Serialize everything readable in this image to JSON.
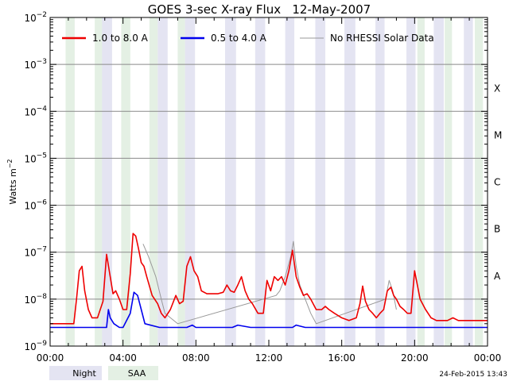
{
  "chart_data": {
    "type": "line",
    "title": "GOES 3-sec X-ray Flux   12-May-2007",
    "ylabel": "Watts m",
    "ylabel_sup": "−2",
    "yscale": "log",
    "ylim": [
      1e-09,
      0.01
    ],
    "xlim": [
      0,
      24
    ],
    "xunit": "hours",
    "y_ticks": [
      {
        "value": 1e-09,
        "label": "10",
        "exp": "−9"
      },
      {
        "value": 1e-08,
        "label": "10",
        "exp": "−8"
      },
      {
        "value": 1e-07,
        "label": "10",
        "exp": "−7"
      },
      {
        "value": 1e-06,
        "label": "10",
        "exp": "−6"
      },
      {
        "value": 1e-05,
        "label": "10",
        "exp": "−5"
      },
      {
        "value": 0.0001,
        "label": "10",
        "exp": "−4"
      },
      {
        "value": 0.001,
        "label": "10",
        "exp": "−3"
      },
      {
        "value": 0.01,
        "label": "10",
        "exp": "−2"
      }
    ],
    "x_ticks": [
      {
        "value": 0,
        "label": "00:00"
      },
      {
        "value": 4,
        "label": "04:00"
      },
      {
        "value": 8,
        "label": "08:00"
      },
      {
        "value": 12,
        "label": "12:00"
      },
      {
        "value": 16,
        "label": "16:00"
      },
      {
        "value": 20,
        "label": "20:00"
      },
      {
        "value": 24,
        "label": "00:00"
      }
    ],
    "grid": true,
    "class_labels": [
      {
        "label": "A",
        "value": 1e-08
      },
      {
        "label": "B",
        "value": 1e-07
      },
      {
        "label": "C",
        "value": 1e-06
      },
      {
        "label": "M",
        "value": 1e-05
      },
      {
        "label": "X",
        "value": 0.0001
      }
    ],
    "legend_position": "top",
    "series": [
      {
        "name": "1.0 to 8.0 A",
        "color": "#ee0000",
        "x": [
          0,
          1.3,
          1.45,
          1.6,
          1.75,
          1.9,
          2.1,
          2.3,
          2.6,
          2.9,
          3.1,
          3.3,
          3.45,
          3.6,
          3.8,
          4.0,
          4.2,
          4.4,
          4.55,
          4.7,
          4.85,
          5.0,
          5.15,
          5.3,
          5.6,
          5.9,
          6.1,
          6.3,
          6.6,
          6.9,
          7.1,
          7.3,
          7.5,
          7.7,
          7.9,
          8.1,
          8.3,
          8.6,
          8.9,
          9.2,
          9.5,
          9.7,
          9.9,
          10.1,
          10.3,
          10.5,
          10.7,
          10.9,
          11.1,
          11.4,
          11.7,
          11.9,
          12.1,
          12.3,
          12.5,
          12.7,
          12.9,
          13.1,
          13.3,
          13.5,
          13.7,
          13.9,
          14.1,
          14.3,
          14.6,
          14.9,
          15.1,
          15.3,
          15.6,
          16.0,
          16.4,
          16.8,
          17.0,
          17.15,
          17.3,
          17.5,
          17.7,
          17.9,
          18.1,
          18.3,
          18.5,
          18.7,
          18.85,
          19.0,
          19.2,
          19.4,
          19.6,
          19.8,
          20.0,
          20.3,
          20.6,
          20.9,
          21.2,
          21.5,
          21.8,
          22.1,
          22.4,
          22.7,
          23.0,
          23.5,
          24.0
        ],
        "y": [
          3e-09,
          3e-09,
          1e-08,
          4e-08,
          5e-08,
          1.5e-08,
          6e-09,
          4e-09,
          4e-09,
          9e-09,
          9e-08,
          3e-08,
          1.3e-08,
          1.5e-08,
          1e-08,
          6e-09,
          6e-09,
          3.5e-08,
          2.5e-07,
          2.2e-07,
          1.2e-07,
          6e-08,
          5e-08,
          3e-08,
          1.2e-08,
          8e-09,
          5e-09,
          4e-09,
          6e-09,
          1.2e-08,
          8e-09,
          9e-09,
          5e-08,
          8e-08,
          4e-08,
          3e-08,
          1.5e-08,
          1.3e-08,
          1.3e-08,
          1.3e-08,
          1.4e-08,
          2e-08,
          1.5e-08,
          1.4e-08,
          2e-08,
          3e-08,
          1.5e-08,
          1e-08,
          8e-09,
          5e-09,
          5e-09,
          2.5e-08,
          1.5e-08,
          3e-08,
          2.5e-08,
          3e-08,
          2e-08,
          4e-08,
          1.1e-07,
          3e-08,
          1.8e-08,
          1.2e-08,
          1.3e-08,
          1e-08,
          6e-09,
          6e-09,
          7e-09,
          6e-09,
          5e-09,
          4e-09,
          3.5e-09,
          4e-09,
          8e-09,
          1.9e-08,
          9e-09,
          6e-09,
          5e-09,
          4e-09,
          5e-09,
          6e-09,
          1.5e-08,
          1.8e-08,
          1.2e-08,
          1e-08,
          7e-09,
          6e-09,
          5e-09,
          5e-09,
          4e-08,
          1e-08,
          6e-09,
          4e-09,
          3.5e-09,
          3.5e-09,
          3.5e-09,
          4e-09,
          3.5e-09,
          3.5e-09,
          3.5e-09,
          3.5e-09,
          3.5e-09
        ]
      },
      {
        "name": "0.5 to 4.0 A",
        "color": "#0000ee",
        "x": [
          0,
          1.0,
          2.0,
          3.1,
          3.2,
          3.3,
          3.5,
          3.8,
          4.0,
          4.4,
          4.6,
          4.8,
          5.0,
          5.2,
          6.0,
          7.5,
          7.8,
          8.0,
          9.0,
          10.0,
          10.3,
          11.0,
          12.0,
          13.3,
          13.5,
          14.0,
          16.0,
          18.5,
          20.0,
          24.0
        ],
        "y": [
          2.5e-09,
          2.5e-09,
          2.5e-09,
          2.5e-09,
          6e-09,
          4e-09,
          3e-09,
          2.5e-09,
          2.5e-09,
          5e-09,
          1.4e-08,
          1.2e-08,
          6e-09,
          3e-09,
          2.5e-09,
          2.5e-09,
          2.8e-09,
          2.5e-09,
          2.5e-09,
          2.5e-09,
          2.8e-09,
          2.5e-09,
          2.5e-09,
          2.5e-09,
          2.8e-09,
          2.5e-09,
          2.5e-09,
          2.5e-09,
          2.5e-09,
          2.5e-09
        ]
      },
      {
        "name": "No RHESSI Solar Data",
        "color": "#999999",
        "x": [
          5.1,
          5.4,
          5.8,
          6.1,
          6.3,
          7.0,
          12.4,
          12.6,
          12.9,
          13.2,
          13.35,
          13.5,
          13.7,
          14.0,
          14.3,
          14.6,
          18.4,
          18.6,
          18.8,
          19.0
        ],
        "y": [
          1.5e-07,
          8e-08,
          3e-08,
          1e-08,
          5e-09,
          3e-09,
          1.2e-08,
          1.5e-08,
          3e-08,
          8e-08,
          1.7e-07,
          5e-08,
          2e-08,
          1e-08,
          5e-09,
          3e-09,
          1e-08,
          2.5e-08,
          1.5e-08,
          6e-09
        ]
      }
    ],
    "night_intervals": [
      [
        2.8,
        3.4
      ],
      [
        5.9,
        6.45
      ],
      [
        7.4,
        7.95
      ],
      [
        9.6,
        10.2
      ],
      [
        11.25,
        11.8
      ],
      [
        12.9,
        13.4
      ],
      [
        14.55,
        15.1
      ],
      [
        16.15,
        16.75
      ],
      [
        17.85,
        18.35
      ],
      [
        19.55,
        20.05
      ],
      [
        21.05,
        21.6
      ],
      [
        22.7,
        23.2
      ]
    ],
    "saa_intervals": [
      [
        0.85,
        1.35
      ],
      [
        2.45,
        2.85
      ],
      [
        3.9,
        4.4
      ],
      [
        5.45,
        5.9
      ],
      [
        7.0,
        7.4
      ],
      [
        20.15,
        20.55
      ],
      [
        21.65,
        22.05
      ],
      [
        23.3,
        23.75
      ]
    ]
  },
  "footer": {
    "night_label": "Night",
    "saa_label": "SAA",
    "night_color": "#e4e4f2",
    "saa_color": "#e4f0e4",
    "timestamp": "24-Feb-2015 13:43"
  }
}
